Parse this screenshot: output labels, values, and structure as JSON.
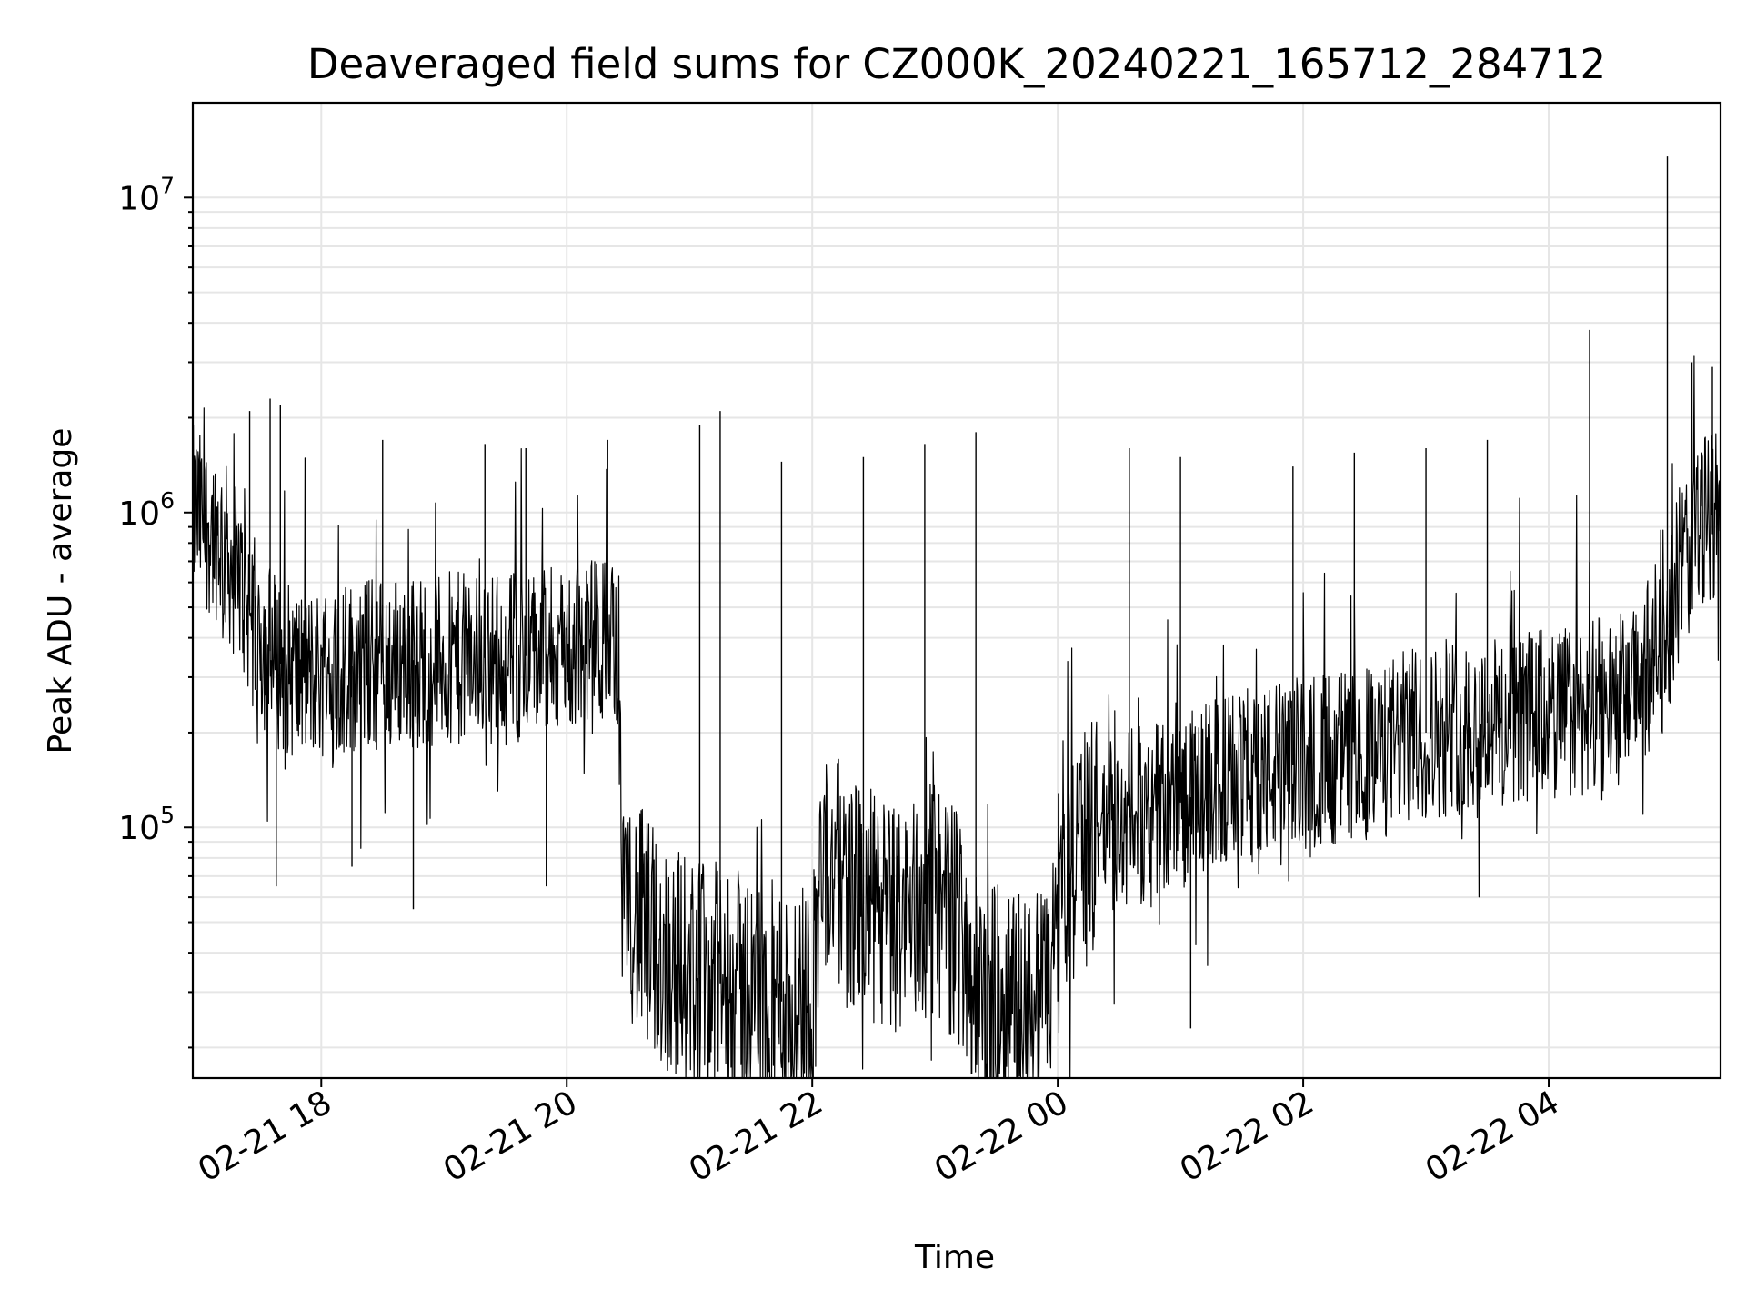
{
  "chart_data": {
    "type": "line",
    "title": "Deaveraged field sums for CZ000K_20240221_165712_284712",
    "xlabel": "Time",
    "ylabel": "Peak ADU - average",
    "yscale": "log",
    "grid": true,
    "grid_minor_y": true,
    "x_type": "datetime",
    "xlim": [
      "2024-02-21T16:57:12",
      "2024-02-22T05:24:00"
    ],
    "ylim": [
      16000,
      20000000
    ],
    "x_ticks": [
      {
        "value": "2024-02-21T18:00:00",
        "label": "02-21 18"
      },
      {
        "value": "2024-02-21T20:00:00",
        "label": "02-21 20"
      },
      {
        "value": "2024-02-21T22:00:00",
        "label": "02-21 22"
      },
      {
        "value": "2024-02-22T00:00:00",
        "label": "02-22 00"
      },
      {
        "value": "2024-02-22T02:00:00",
        "label": "02-22 02"
      },
      {
        "value": "2024-02-22T04:00:00",
        "label": "02-22 04"
      }
    ],
    "y_ticks": [
      {
        "value": 100000,
        "base": "10",
        "exp": "5"
      },
      {
        "value": 1000000,
        "base": "10",
        "exp": "6"
      },
      {
        "value": 10000000,
        "base": "10",
        "exp": "7"
      }
    ],
    "series": [
      {
        "color": "#000000",
        "x": [
          "2024-02-21T16:57:12",
          "2024-02-21T17:10:00",
          "2024-02-21T17:20:00",
          "2024-02-21T17:30:00",
          "2024-02-21T17:40:00",
          "2024-02-21T17:50:00",
          "2024-02-21T18:00:00",
          "2024-02-21T18:20:00",
          "2024-02-21T18:40:00",
          "2024-02-21T19:00:00",
          "2024-02-21T19:20:00",
          "2024-02-21T19:40:00",
          "2024-02-21T20:00:00",
          "2024-02-21T20:15:00",
          "2024-02-21T20:25:00",
          "2024-02-21T20:27:00",
          "2024-02-21T20:35:00",
          "2024-02-21T20:45:00",
          "2024-02-21T21:00:00",
          "2024-02-21T21:15:00",
          "2024-02-21T21:30:00",
          "2024-02-21T21:45:00",
          "2024-02-21T22:00:00",
          "2024-02-21T22:05:00",
          "2024-02-21T22:20:00",
          "2024-02-21T22:40:00",
          "2024-02-21T23:00:00",
          "2024-02-21T23:15:00",
          "2024-02-21T23:20:00",
          "2024-02-21T23:40:00",
          "2024-02-21T23:55:00",
          "2024-02-22T00:00:00",
          "2024-02-22T00:20:00",
          "2024-02-22T00:40:00",
          "2024-02-22T01:00:00",
          "2024-02-22T01:20:00",
          "2024-02-22T01:40:00",
          "2024-02-22T02:00:00",
          "2024-02-22T02:20:00",
          "2024-02-22T02:40:00",
          "2024-02-22T02:45:00",
          "2024-02-22T03:00:00",
          "2024-02-22T03:20:00",
          "2024-02-22T03:40:00",
          "2024-02-22T04:00:00",
          "2024-02-22T04:20:00",
          "2024-02-22T04:40:00",
          "2024-02-22T04:55:00",
          "2024-02-22T05:05:00",
          "2024-02-22T05:15:00",
          "2024-02-22T05:24:00"
        ],
        "y": [
          1000000,
          850000,
          600000,
          400000,
          330000,
          300000,
          310000,
          330000,
          340000,
          340000,
          345000,
          350000,
          360000,
          380000,
          400000,
          70000,
          50000,
          40000,
          35000,
          32000,
          30000,
          28000,
          30000,
          80000,
          60000,
          50000,
          60000,
          45000,
          28000,
          27000,
          28000,
          60000,
          100000,
          110000,
          120000,
          140000,
          150000,
          160000,
          170000,
          170000,
          190000,
          200000,
          210000,
          220000,
          230000,
          240000,
          260000,
          350000,
          700000,
          900000,
          1100000
        ]
      }
    ],
    "spikes": [
      {
        "x": "2024-02-21T17:25:00",
        "y": 2100000
      },
      {
        "x": "2024-02-21T17:35:00",
        "y": 2300000
      },
      {
        "x": "2024-02-21T17:40:00",
        "y": 2200000
      },
      {
        "x": "2024-02-21T17:38:00",
        "y": 65000
      },
      {
        "x": "2024-02-21T18:15:00",
        "y": 75000
      },
      {
        "x": "2024-02-21T18:30:00",
        "y": 1700000
      },
      {
        "x": "2024-02-21T18:45:00",
        "y": 55000
      },
      {
        "x": "2024-02-21T19:20:00",
        "y": 1650000
      },
      {
        "x": "2024-02-21T19:40:00",
        "y": 1600000
      },
      {
        "x": "2024-02-21T19:50:00",
        "y": 65000
      },
      {
        "x": "2024-02-21T20:20:00",
        "y": 1700000
      },
      {
        "x": "2024-02-21T21:05:00",
        "y": 1900000
      },
      {
        "x": "2024-02-21T21:15:00",
        "y": 2100000
      },
      {
        "x": "2024-02-21T21:10:00",
        "y": 18000
      },
      {
        "x": "2024-02-21T21:45:00",
        "y": 1450000
      },
      {
        "x": "2024-02-21T22:25:00",
        "y": 1500000
      },
      {
        "x": "2024-02-21T22:55:00",
        "y": 1650000
      },
      {
        "x": "2024-02-21T23:20:00",
        "y": 1800000
      },
      {
        "x": "2024-02-21T23:18:00",
        "y": 16500
      },
      {
        "x": "2024-02-22T00:35:00",
        "y": 1600000
      },
      {
        "x": "2024-02-22T01:00:00",
        "y": 1500000
      },
      {
        "x": "2024-02-22T01:05:00",
        "y": 23000
      },
      {
        "x": "2024-02-22T01:55:00",
        "y": 1400000
      },
      {
        "x": "2024-02-22T02:25:00",
        "y": 1550000
      },
      {
        "x": "2024-02-22T03:00:00",
        "y": 1600000
      },
      {
        "x": "2024-02-22T03:30:00",
        "y": 1700000
      },
      {
        "x": "2024-02-22T04:20:00",
        "y": 3800000
      },
      {
        "x": "2024-02-22T04:58:00",
        "y": 13500000
      },
      {
        "x": "2024-02-22T05:10:00",
        "y": 3000000
      },
      {
        "x": "2024-02-22T05:20:00",
        "y": 2900000
      }
    ]
  }
}
